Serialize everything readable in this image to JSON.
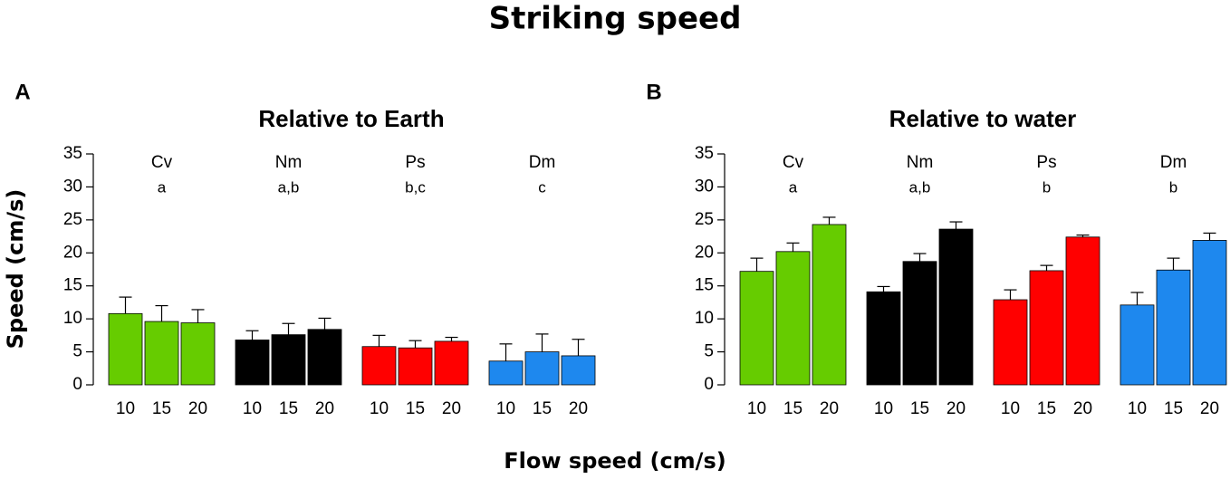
{
  "title": "Striking speed",
  "ylabel": "Speed (cm/s)",
  "xlabel": "Flow speed (cm/s)",
  "chart_data": [
    {
      "type": "bar",
      "panel": "A",
      "title": "Relative to Earth",
      "categories": [
        "10",
        "15",
        "20"
      ],
      "ylim": [
        0,
        35
      ],
      "yticks": [
        0,
        5,
        10,
        15,
        20,
        25,
        30,
        35
      ],
      "series": [
        {
          "name": "Cv",
          "label": "a",
          "color": "#66cc00",
          "values": [
            10.8,
            9.6,
            9.4
          ],
          "errors": [
            2.5,
            2.4,
            2.0
          ]
        },
        {
          "name": "Nm",
          "label": "a,b",
          "color": "#000000",
          "values": [
            6.8,
            7.6,
            8.4
          ],
          "errors": [
            1.4,
            1.7,
            1.7
          ]
        },
        {
          "name": "Ps",
          "label": "b,c",
          "color": "#ff0000",
          "values": [
            5.8,
            5.6,
            6.6
          ],
          "errors": [
            1.7,
            1.1,
            0.6
          ]
        },
        {
          "name": "Dm",
          "label": "c",
          "color": "#1e88ee",
          "values": [
            3.6,
            5.0,
            4.4
          ],
          "errors": [
            2.6,
            2.7,
            2.5
          ]
        }
      ]
    },
    {
      "type": "bar",
      "panel": "B",
      "title": "Relative to water",
      "categories": [
        "10",
        "15",
        "20"
      ],
      "ylim": [
        0,
        35
      ],
      "yticks": [
        0,
        5,
        10,
        15,
        20,
        25,
        30,
        35
      ],
      "series": [
        {
          "name": "Cv",
          "label": "a",
          "color": "#66cc00",
          "values": [
            17.2,
            20.2,
            24.3
          ],
          "errors": [
            2.0,
            1.3,
            1.1
          ]
        },
        {
          "name": "Nm",
          "label": "a,b",
          "color": "#000000",
          "values": [
            14.1,
            18.7,
            23.6
          ],
          "errors": [
            0.8,
            1.2,
            1.1
          ]
        },
        {
          "name": "Ps",
          "label": "b",
          "color": "#ff0000",
          "values": [
            12.9,
            17.3,
            22.4
          ],
          "errors": [
            1.5,
            0.8,
            0.3
          ]
        },
        {
          "name": "Dm",
          "label": "b",
          "color": "#1e88ee",
          "values": [
            12.1,
            17.4,
            21.9
          ],
          "errors": [
            1.9,
            1.8,
            1.1
          ]
        }
      ]
    }
  ]
}
